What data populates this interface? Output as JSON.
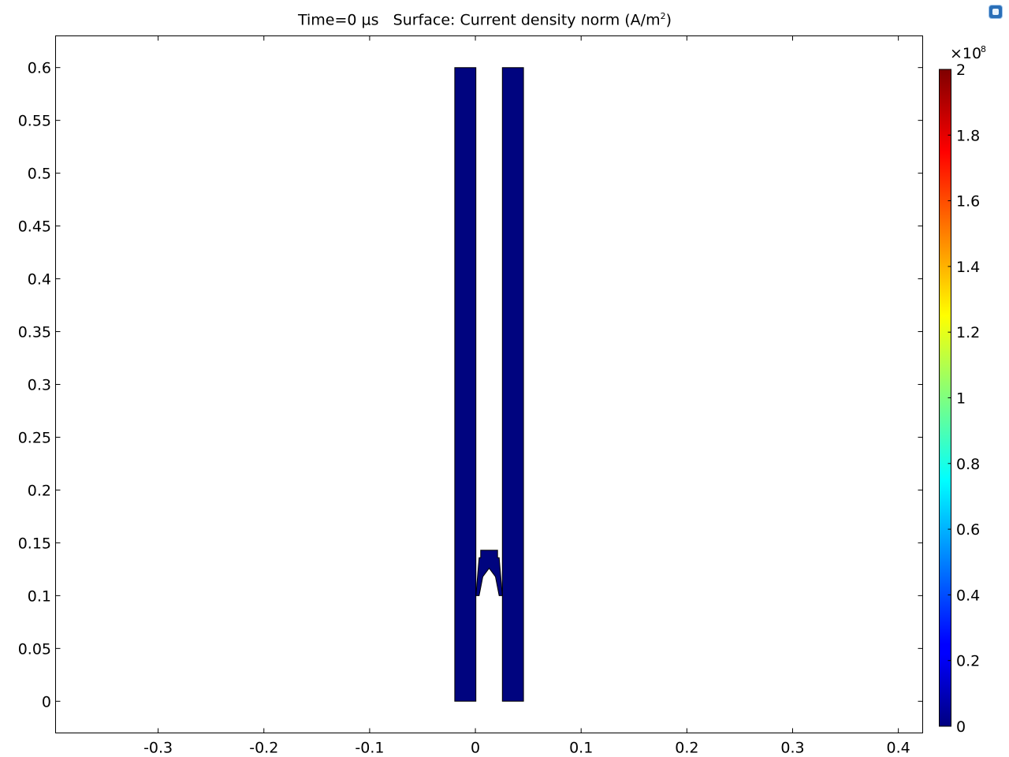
{
  "chart_data": {
    "type": "heatmap",
    "title": {
      "time": "Time=0 µs",
      "surface_label": "Surface: Current density norm (A/m",
      "exponent": "2",
      "close": ")"
    },
    "x_ticks": [
      "-0.3",
      "-0.2",
      "-0.1",
      "0",
      "0.1",
      "0.2",
      "0.3",
      "0.4"
    ],
    "y_ticks": [
      "0",
      "0.05",
      "0.1",
      "0.15",
      "0.2",
      "0.25",
      "0.3",
      "0.35",
      "0.4",
      "0.45",
      "0.5",
      "0.55",
      "0.6"
    ],
    "xlim": [
      -0.397,
      0.423
    ],
    "ylim": [
      -0.03,
      0.63
    ],
    "grid": false,
    "colorbar": {
      "multiplier": "×10",
      "multiplier_exponent": "8",
      "range": [
        0,
        2
      ],
      "ticks": [
        "0",
        "0.2",
        "0.4",
        "0.6",
        "0.8",
        "1",
        "1.2",
        "1.4",
        "1.6",
        "1.8",
        "2"
      ],
      "colormap": "jet"
    },
    "surface_color": "#00047f",
    "geometry": [
      {
        "name": "left-conductor",
        "points": [
          [
            -0.0195,
            0
          ],
          [
            0.0005,
            0
          ],
          [
            0.0005,
            0.6
          ],
          [
            -0.0195,
            0.6
          ]
        ]
      },
      {
        "name": "right-conductor",
        "points": [
          [
            0.0255,
            0
          ],
          [
            0.0455,
            0
          ],
          [
            0.0455,
            0.6
          ],
          [
            0.0255,
            0.6
          ]
        ]
      },
      {
        "name": "armature",
        "points": [
          [
            0.0005,
            0.1
          ],
          [
            0.0035,
            0.136
          ],
          [
            0.005,
            0.136
          ],
          [
            0.005,
            0.143
          ],
          [
            0.021,
            0.143
          ],
          [
            0.021,
            0.136
          ],
          [
            0.0225,
            0.136
          ],
          [
            0.0255,
            0.1
          ],
          [
            0.0225,
            0.1
          ],
          [
            0.019,
            0.118
          ],
          [
            0.013,
            0.126
          ],
          [
            0.007,
            0.118
          ],
          [
            0.0035,
            0.1
          ]
        ]
      }
    ]
  }
}
